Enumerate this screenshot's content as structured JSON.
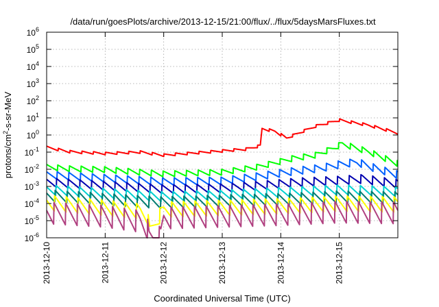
{
  "chart_data": {
    "type": "line",
    "title": "/data/run/goesPlots/archive/2013-12-15/21:00/flux/../flux/5daysMarsFluxes.txt",
    "xlabel": "Coordinated Universal Time (UTC)",
    "ylabel": {
      "base": "protons/cm",
      "sup": "2",
      "rest": "-s-sr-MeV"
    },
    "x_tick_labels": [
      "2013-12-10",
      "2013-12-11",
      "2013-12-12",
      "2013-12-13",
      "2013-12-14",
      "2013-12-15"
    ],
    "xlim_days": [
      0,
      6.0
    ],
    "y_scale": "log",
    "ylim": [
      1e-06,
      1000000.0
    ],
    "y_tick_exponents": [
      -6,
      -5,
      -4,
      -3,
      -2,
      -1,
      0,
      1,
      2,
      3,
      4,
      5,
      6
    ],
    "grid": true,
    "sawtooth_period_days": 0.2,
    "series": [
      {
        "color": "#ff0000",
        "min_factor": 0.7,
        "log10_x_knots": [
          [
            0,
            -0.65
          ],
          [
            0.4,
            -0.9
          ],
          [
            1.0,
            -1.0
          ],
          [
            1.6,
            -0.92
          ],
          [
            2.0,
            -1.1
          ],
          [
            2.6,
            -0.95
          ],
          [
            3.4,
            -0.75
          ],
          [
            3.65,
            -0.55
          ],
          [
            3.68,
            0.45
          ],
          [
            3.9,
            0.3
          ],
          [
            4.1,
            -0.1
          ],
          [
            4.6,
            0.6
          ],
          [
            5.0,
            0.95
          ],
          [
            5.5,
            0.65
          ],
          [
            6.0,
            0.2
          ]
        ]
      },
      {
        "color": "#00ff00",
        "min_factor": 0.45,
        "log10_x_knots": [
          [
            0,
            -1.7
          ],
          [
            0.4,
            -1.8
          ],
          [
            1.0,
            -1.85
          ],
          [
            2.0,
            -2.1
          ],
          [
            3.0,
            -2.0
          ],
          [
            3.6,
            -1.7
          ],
          [
            4.2,
            -1.2
          ],
          [
            4.6,
            -1.0
          ],
          [
            4.9,
            -0.6
          ],
          [
            5.05,
            -0.35
          ],
          [
            5.5,
            -0.8
          ],
          [
            6.0,
            -1.5
          ]
        ]
      },
      {
        "color": "#0060ff",
        "min_factor": 0.35,
        "log10_x_knots": [
          [
            0,
            -2.1
          ],
          [
            1.0,
            -2.3
          ],
          [
            2.0,
            -2.5
          ],
          [
            3.0,
            -2.45
          ],
          [
            3.6,
            -2.2
          ],
          [
            4.2,
            -1.9
          ],
          [
            4.7,
            -1.7
          ],
          [
            5.0,
            -1.5
          ],
          [
            5.3,
            -1.35
          ],
          [
            5.6,
            -1.7
          ],
          [
            6.0,
            -2.1
          ]
        ]
      },
      {
        "color": "#0000b0",
        "min_factor": 0.3,
        "log10_x_knots": [
          [
            0,
            -2.5
          ],
          [
            1.0,
            -2.7
          ],
          [
            2.0,
            -2.9
          ],
          [
            3.0,
            -2.85
          ],
          [
            3.6,
            -2.7
          ],
          [
            4.3,
            -2.5
          ],
          [
            5.0,
            -2.4
          ],
          [
            5.4,
            -2.3
          ],
          [
            6.0,
            -2.6
          ]
        ]
      },
      {
        "color": "#00d0d0",
        "min_factor": 0.25,
        "log10_x_knots": [
          [
            0,
            -2.9
          ],
          [
            1.0,
            -3.1
          ],
          [
            2.0,
            -3.3
          ],
          [
            3.0,
            -3.2
          ],
          [
            4.0,
            -3.05
          ],
          [
            5.0,
            -2.9
          ],
          [
            6.0,
            -3.0
          ]
        ]
      },
      {
        "color": "#007b70",
        "min_factor": 0.2,
        "log10_x_knots": [
          [
            0,
            -3.2
          ],
          [
            1.0,
            -3.4
          ],
          [
            2.0,
            -3.6
          ],
          [
            3.0,
            -3.5
          ],
          [
            4.0,
            -3.4
          ],
          [
            5.0,
            -3.25
          ],
          [
            6.0,
            -3.3
          ]
        ]
      },
      {
        "color": "#ffff00",
        "min_factor": 0.12,
        "log10_x_knots": [
          [
            0,
            -3.5
          ],
          [
            1.0,
            -3.8
          ],
          [
            1.6,
            -4.0
          ],
          [
            1.72,
            -4.3
          ],
          [
            1.76,
            -5.2
          ],
          [
            2.0,
            -3.9
          ],
          [
            3.0,
            -3.8
          ],
          [
            4.0,
            -3.7
          ],
          [
            5.0,
            -3.55
          ],
          [
            6.0,
            -3.6
          ]
        ]
      },
      {
        "color": "#b04080",
        "min_factor": 0.05,
        "log10_x_knots": [
          [
            0,
            -3.9
          ],
          [
            1.0,
            -4.1
          ],
          [
            1.6,
            -4.4
          ],
          [
            1.72,
            -4.8
          ],
          [
            1.75,
            -5.45
          ],
          [
            1.95,
            -5.3
          ],
          [
            2.0,
            -4.2
          ],
          [
            3.0,
            -4.1
          ],
          [
            4.0,
            -4.0
          ],
          [
            5.0,
            -3.85
          ],
          [
            6.0,
            -3.9
          ]
        ]
      }
    ]
  }
}
